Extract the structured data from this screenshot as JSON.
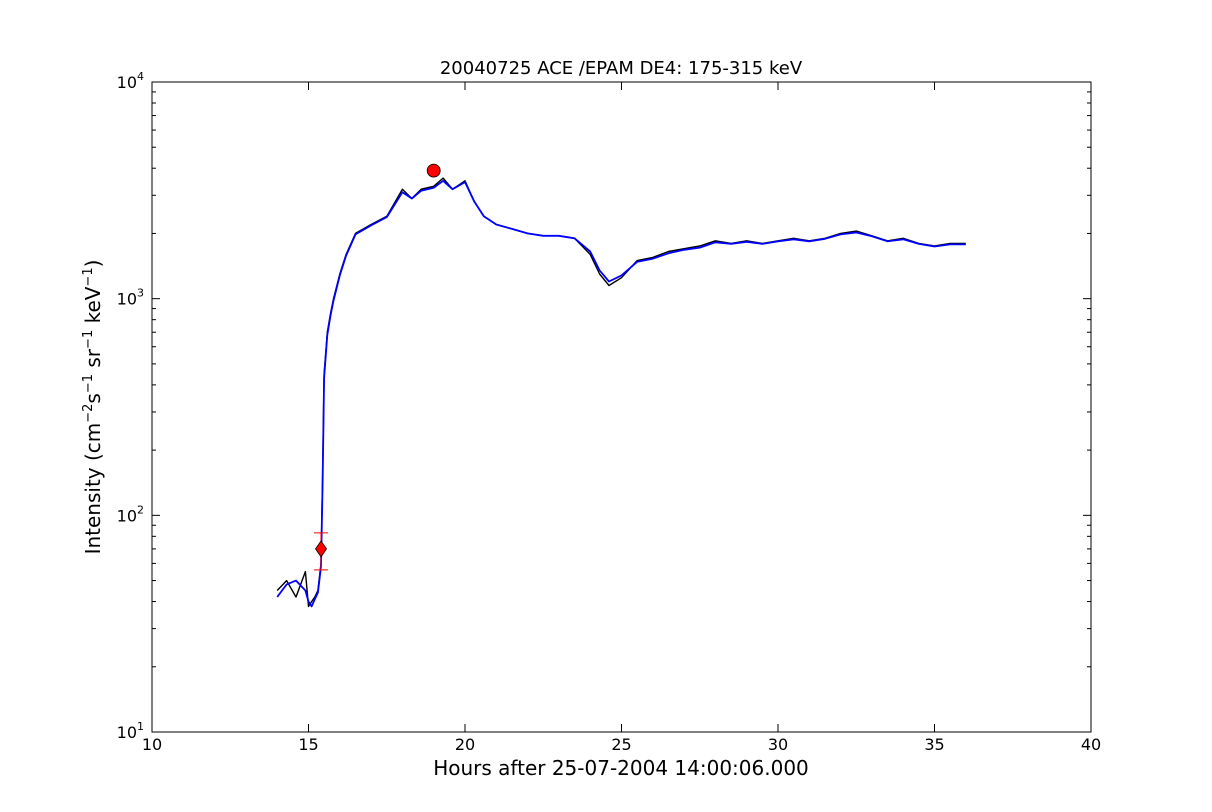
{
  "chart_data": {
    "type": "line",
    "title": "20040725 ACE /EPAM DE4: 175-315 keV",
    "xlabel": "Hours after 25-07-2004 14:00:06.000",
    "ylabel": {
      "base": "Intensity (cm",
      "exp1": "−2",
      "mid1": "s",
      "exp2": "−1",
      "mid2": "sr",
      "exp3": "−1",
      "mid3": "keV",
      "exp4": "−1",
      "end": ")"
    },
    "xlim": [
      10,
      40
    ],
    "ylim": [
      10,
      10000
    ],
    "yscale": "log",
    "grid": false,
    "x_ticks": [
      10,
      15,
      20,
      25,
      30,
      35,
      40
    ],
    "x_tick_labels": [
      "10",
      "15",
      "20",
      "25",
      "30",
      "35",
      "40"
    ],
    "y_ticks": [
      10,
      100,
      1000,
      10000
    ],
    "y_tick_labels": [
      {
        "base": "10",
        "exp": "1"
      },
      {
        "base": "10",
        "exp": "2"
      },
      {
        "base": "10",
        "exp": "3"
      },
      {
        "base": "10",
        "exp": "4"
      }
    ],
    "series": [
      {
        "color": "#000000",
        "role": "raw",
        "x": [
          14.0,
          14.3,
          14.6,
          14.9,
          15.0,
          15.1,
          15.2,
          15.3,
          15.4,
          15.45,
          15.5,
          15.6,
          15.7,
          15.8,
          16.0,
          16.2,
          16.5,
          17.0,
          17.5,
          18.0,
          18.3,
          18.6,
          19.0,
          19.3,
          19.6,
          20.0,
          20.3,
          20.6,
          21.0,
          21.5,
          22.0,
          22.5,
          23.0,
          23.5,
          24.0,
          24.3,
          24.6,
          25.0,
          25.5,
          26.0,
          26.5,
          27.0,
          27.5,
          28.0,
          28.5,
          29.0,
          29.5,
          30.0,
          30.5,
          31.0,
          31.5,
          32.0,
          32.5,
          33.0,
          33.5,
          34.0,
          34.5,
          35.0,
          35.5,
          36.0
        ],
        "y": [
          45,
          50,
          42,
          55,
          38,
          40,
          42,
          45,
          60,
          150,
          450,
          700,
          850,
          1000,
          1300,
          1600,
          2000,
          2200,
          2400,
          3200,
          2900,
          3200,
          3300,
          3600,
          3200,
          3500,
          2800,
          2400,
          2200,
          2100,
          2000,
          1950,
          1950,
          1900,
          1600,
          1300,
          1150,
          1250,
          1500,
          1550,
          1650,
          1700,
          1750,
          1850,
          1800,
          1850,
          1800,
          1850,
          1900,
          1850,
          1900,
          2000,
          2050,
          1950,
          1850,
          1900,
          1800,
          1750,
          1800,
          1800
        ]
      },
      {
        "color": "#0000ff",
        "role": "smoothed",
        "x": [
          14.0,
          14.3,
          14.6,
          14.9,
          15.0,
          15.1,
          15.2,
          15.3,
          15.4,
          15.45,
          15.5,
          15.6,
          15.7,
          15.8,
          16.0,
          16.2,
          16.5,
          17.0,
          17.5,
          18.0,
          18.3,
          18.6,
          19.0,
          19.3,
          19.6,
          20.0,
          20.3,
          20.6,
          21.0,
          21.5,
          22.0,
          22.5,
          23.0,
          23.5,
          24.0,
          24.3,
          24.6,
          25.0,
          25.5,
          26.0,
          26.5,
          27.0,
          27.5,
          28.0,
          28.5,
          29.0,
          29.5,
          30.0,
          30.5,
          31.0,
          31.5,
          32.0,
          32.5,
          33.0,
          33.5,
          34.0,
          34.5,
          35.0,
          35.5,
          36.0
        ],
        "y": [
          42,
          48,
          50,
          45,
          40,
          38,
          41,
          44,
          58,
          140,
          430,
          680,
          830,
          980,
          1280,
          1580,
          1980,
          2180,
          2380,
          3100,
          2900,
          3150,
          3250,
          3500,
          3200,
          3450,
          2800,
          2400,
          2200,
          2100,
          2000,
          1950,
          1950,
          1900,
          1650,
          1350,
          1200,
          1280,
          1480,
          1530,
          1620,
          1680,
          1720,
          1820,
          1790,
          1830,
          1790,
          1840,
          1880,
          1840,
          1890,
          1980,
          2020,
          1940,
          1840,
          1880,
          1790,
          1740,
          1780,
          1780
        ]
      }
    ],
    "markers": [
      {
        "shape": "diamond",
        "color": "#ff0000",
        "x": 15.4,
        "y": 70,
        "err_low": 56,
        "err_high": 83
      },
      {
        "shape": "circle",
        "color": "#ff0000",
        "x": 19.0,
        "y": 3900
      }
    ]
  }
}
